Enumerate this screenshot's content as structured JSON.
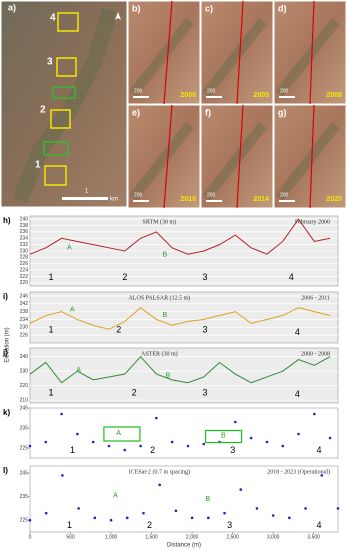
{
  "image_panels": {
    "a": {
      "label": "a)",
      "site_labels": [
        "4",
        "3",
        "2",
        "1"
      ],
      "scale_value": "1",
      "scale_unit": "km"
    },
    "series": [
      {
        "label": "b)",
        "year": "2000",
        "scale": "200"
      },
      {
        "label": "c)",
        "year": "2005",
        "scale": "200"
      },
      {
        "label": "d)",
        "year": "2008",
        "scale": "200"
      },
      {
        "label": "e)",
        "year": "2010",
        "scale": "200"
      },
      {
        "label": "f)",
        "year": "2014",
        "scale": "200"
      },
      {
        "label": "g)",
        "year": "2020",
        "scale": "200"
      }
    ]
  },
  "shared_ylabel": "Elevation (m)",
  "chart_data": [
    {
      "type": "line",
      "panel": "h)",
      "title": "SRTM (30 m)",
      "date": "February 2000",
      "color": "#b22222",
      "annotations": [
        "A",
        "B",
        "1",
        "2",
        "3",
        "4"
      ],
      "x": [
        0,
        200,
        400,
        600,
        800,
        1000,
        1200,
        1400,
        1600,
        1800,
        2000,
        2200,
        2400,
        2600,
        2800,
        3000,
        3200,
        3400,
        3600,
        3800
      ],
      "values": [
        229,
        231,
        234,
        233,
        232,
        231,
        230,
        234,
        236,
        231,
        229,
        230,
        232,
        235,
        231,
        229,
        233,
        240,
        233,
        234
      ],
      "xlim": [
        0,
        3900
      ],
      "ylim": [
        219,
        241
      ],
      "yticks": [
        220,
        222,
        224,
        226,
        228,
        230,
        232,
        234,
        236,
        238,
        240
      ],
      "grid": true
    },
    {
      "type": "line",
      "panel": "i)",
      "title": "ALOS PALSAR (12.5 m)",
      "date": "2006 - 2011",
      "color": "#e0a020",
      "annotations": [
        "A",
        "B",
        "1",
        "2",
        "3",
        "4"
      ],
      "x": [
        0,
        200,
        400,
        600,
        800,
        1000,
        1200,
        1400,
        1600,
        1800,
        2000,
        2200,
        2400,
        2600,
        2800,
        3000,
        3200,
        3400,
        3600,
        3800
      ],
      "values": [
        232,
        236,
        238,
        234,
        231,
        229,
        233,
        240,
        234,
        231,
        233,
        234,
        236,
        238,
        232,
        234,
        236,
        240,
        238,
        236
      ],
      "xlim": [
        0,
        3900
      ],
      "ylim": [
        222,
        248
      ],
      "yticks": [
        226,
        230,
        234,
        238,
        242,
        246
      ],
      "grid": true
    },
    {
      "type": "line",
      "panel": "j)",
      "title": "ASTER (30 m)",
      "date": "2000 - 2008",
      "color": "#2e8b2e",
      "annotations": [
        "A",
        "B",
        "1",
        "2",
        "3",
        "4"
      ],
      "x": [
        0,
        200,
        400,
        600,
        800,
        1000,
        1200,
        1400,
        1600,
        1800,
        2000,
        2200,
        2400,
        2600,
        2800,
        3000,
        3200,
        3400,
        3600,
        3800
      ],
      "values": [
        228,
        236,
        222,
        230,
        224,
        226,
        228,
        240,
        228,
        224,
        222,
        226,
        236,
        228,
        222,
        226,
        230,
        238,
        234,
        240
      ],
      "xlim": [
        0,
        3900
      ],
      "ylim": [
        208,
        246
      ],
      "yticks": [
        210,
        220,
        230,
        240
      ],
      "grid": true
    },
    {
      "type": "scatter",
      "panel": "k)",
      "color": "#2020c8",
      "annotations": [
        "A",
        "B",
        "1",
        "2",
        "3",
        "4"
      ],
      "x": [
        0,
        200,
        400,
        600,
        800,
        1000,
        1200,
        1400,
        1600,
        1800,
        2000,
        2200,
        2400,
        2600,
        2800,
        3000,
        3200,
        3400,
        3600,
        3800
      ],
      "values": [
        226,
        228,
        242,
        232,
        228,
        226,
        224,
        226,
        240,
        228,
        226,
        227,
        228,
        238,
        230,
        228,
        226,
        232,
        242,
        230
      ],
      "xlim": [
        0,
        3900
      ],
      "ylim": [
        220,
        245
      ],
      "yticks": [
        225,
        235,
        245
      ],
      "grid": false
    },
    {
      "type": "scatter",
      "panel": "l)",
      "title": "ICESat-2 (0.7 m spacing)",
      "date": "2018 - 2023 (Operational)",
      "color": "#2020c8",
      "annotations": [
        "A",
        "B",
        "1",
        "2",
        "3",
        "4"
      ],
      "xlabel": "Distance (m)",
      "x": [
        0,
        200,
        400,
        600,
        800,
        1000,
        1200,
        1400,
        1600,
        1800,
        2000,
        2200,
        2400,
        2600,
        2800,
        3000,
        3200,
        3400,
        3600,
        3800
      ],
      "values": [
        225,
        228,
        244,
        230,
        226,
        225,
        226,
        228,
        240,
        229,
        226,
        226,
        228,
        238,
        230,
        227,
        226,
        230,
        244,
        230
      ],
      "xlim": [
        0,
        3800
      ],
      "ylim": [
        220,
        248
      ],
      "yticks": [
        225,
        235,
        245
      ],
      "grid": false,
      "xticks": [
        0,
        500,
        {
          "value": 1000,
          "label": "1,000"
        },
        {
          "value": 1500,
          "label": "1,500"
        },
        {
          "value": 2000,
          "label": "2,000"
        },
        {
          "value": 2500,
          "label": "2,500"
        },
        {
          "value": 3000,
          "label": "3,000"
        },
        {
          "value": 3500,
          "label": "3,500"
        }
      ]
    }
  ]
}
